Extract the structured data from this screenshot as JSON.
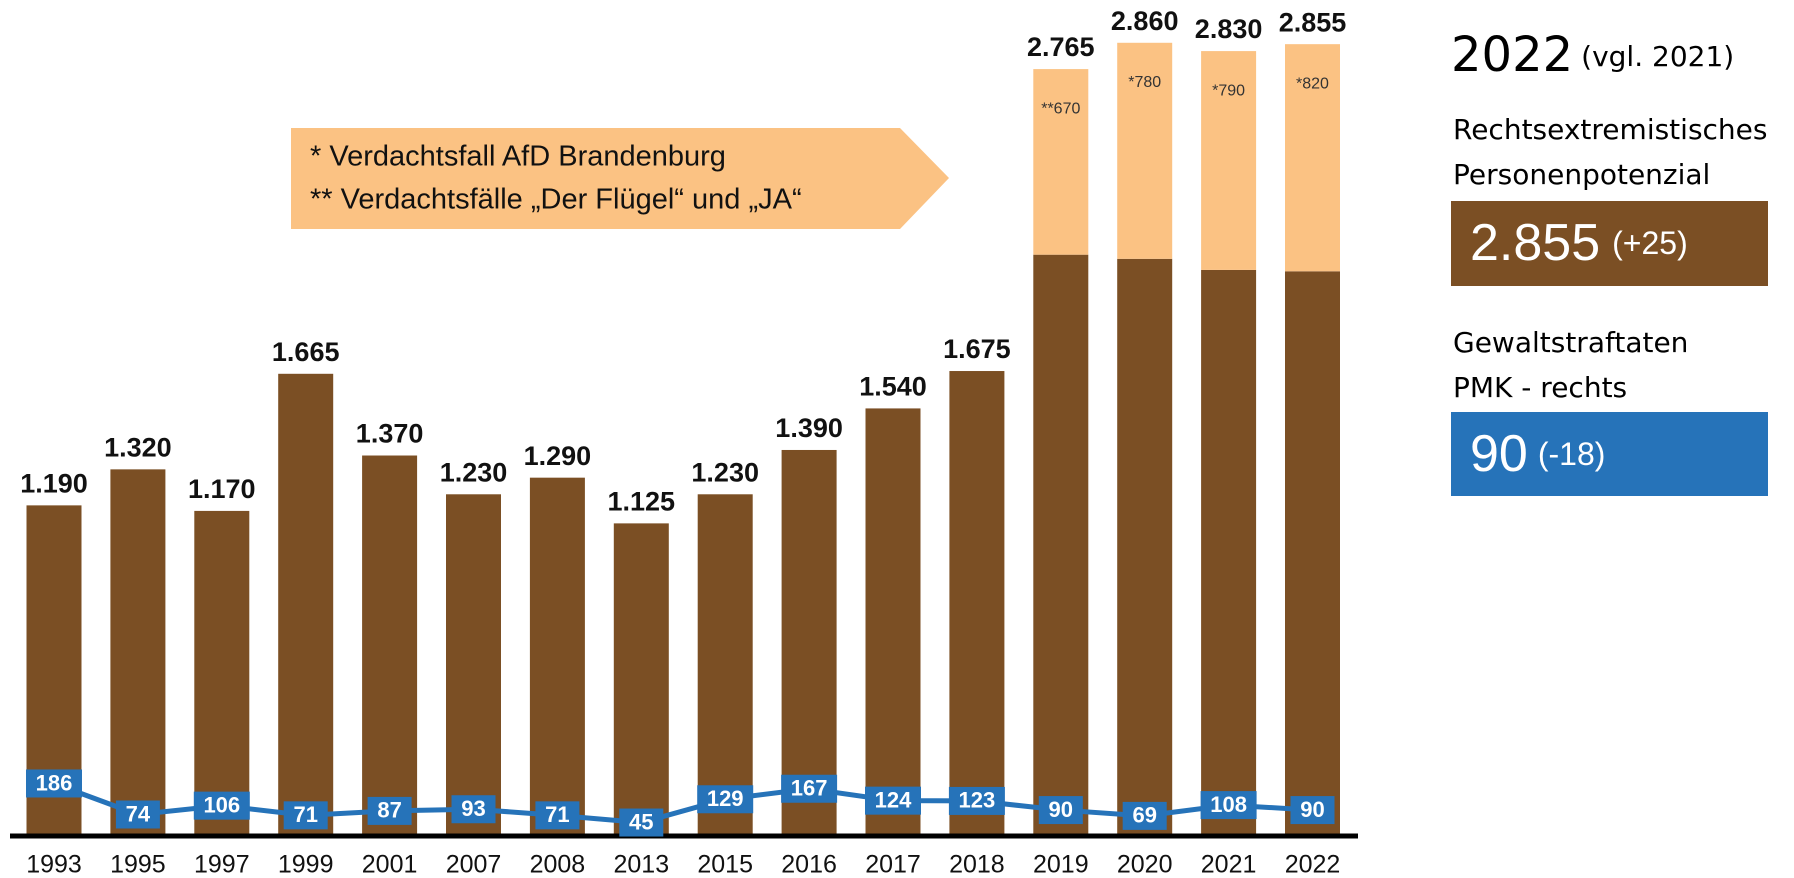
{
  "chart_data": {
    "type": "bar",
    "categories": [
      "1993",
      "1995",
      "1997",
      "1999",
      "2001",
      "2007",
      "2008",
      "2013",
      "2015",
      "2016",
      "2017",
      "2018",
      "2019",
      "2020",
      "2021",
      "2022"
    ],
    "ylim": [
      0,
      3000
    ],
    "totals": [
      1190,
      1320,
      1170,
      1665,
      1370,
      1230,
      1290,
      1125,
      1230,
      1390,
      1540,
      1675,
      2765,
      2860,
      2830,
      2855
    ],
    "total_labels": [
      "1.190",
      "1.320",
      "1.170",
      "1.665",
      "1.370",
      "1.230",
      "1.290",
      "1.125",
      "1.230",
      "1.390",
      "1.540",
      "1.675",
      "2.765",
      "2.860",
      "2.830",
      "2.855"
    ],
    "series": [
      {
        "type": "bar",
        "color": "#7b4f24",
        "values": [
          1190,
          1320,
          1170,
          1665,
          1370,
          1230,
          1290,
          1125,
          1230,
          1390,
          1540,
          1675,
          2095,
          2080,
          2040,
          2035
        ]
      },
      {
        "type": "bar",
        "color": "#fbc283",
        "values": [
          null,
          null,
          null,
          null,
          null,
          null,
          null,
          null,
          null,
          null,
          null,
          null,
          670,
          780,
          790,
          820
        ],
        "value_labels": [
          null,
          null,
          null,
          null,
          null,
          null,
          null,
          null,
          null,
          null,
          null,
          null,
          "**670",
          "*780",
          "*790",
          "*820"
        ]
      },
      {
        "type": "line",
        "color": "#2673b9",
        "values": [
          186,
          74,
          106,
          71,
          87,
          93,
          71,
          45,
          129,
          167,
          124,
          123,
          90,
          69,
          108,
          90
        ]
      }
    ],
    "annotations": [
      "* Verdachtsfall AfD Brandenburg",
      "** Verdachtsfälle „Der Flügel“ und „JA“"
    ]
  },
  "panel": {
    "year": "2022",
    "compare": "(vgl. 2021)",
    "label1": [
      "Rechtsextremistisches",
      "Personenpotenzial"
    ],
    "value1": "2.855",
    "delta1": "(+25)",
    "label2": [
      "Gewaltstraftaten",
      "PMK - rechts"
    ],
    "value2": "90",
    "delta2": "(-18)"
  }
}
